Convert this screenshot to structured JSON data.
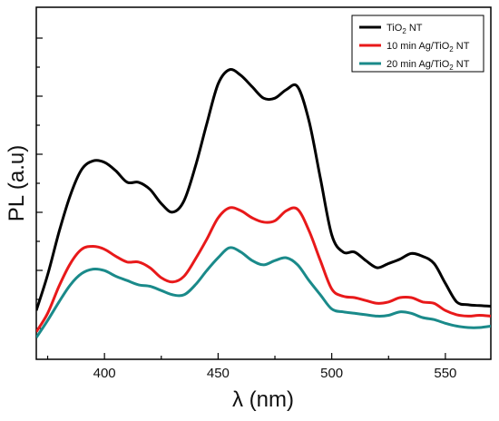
{
  "chart_data": {
    "type": "line",
    "title": "",
    "xlabel": "λ (nm)",
    "ylabel": "PL (a.u)",
    "xlim": [
      370,
      570
    ],
    "ylim": [
      0,
      1
    ],
    "xticks": [
      400,
      450,
      500,
      550
    ],
    "yticks_labeled": false,
    "grid": false,
    "legend_position": "top-right",
    "series": [
      {
        "name_main": "TiO",
        "name_sub": "2",
        "name_tail": " NT",
        "color": "#000000",
        "x": [
          370,
          375,
          380,
          385,
          390,
          395,
          400,
          405,
          410,
          415,
          420,
          425,
          430,
          435,
          440,
          445,
          450,
          455,
          460,
          465,
          470,
          475,
          480,
          485,
          490,
          495,
          500,
          505,
          510,
          515,
          520,
          525,
          530,
          535,
          540,
          545,
          550,
          555,
          560,
          565,
          570
        ],
        "y": [
          0.095,
          0.22,
          0.37,
          0.5,
          0.59,
          0.62,
          0.615,
          0.585,
          0.545,
          0.545,
          0.52,
          0.47,
          0.44,
          0.48,
          0.6,
          0.75,
          0.89,
          0.94,
          0.92,
          0.88,
          0.84,
          0.84,
          0.87,
          0.88,
          0.76,
          0.56,
          0.36,
          0.3,
          0.3,
          0.27,
          0.245,
          0.26,
          0.275,
          0.295,
          0.285,
          0.26,
          0.19,
          0.125,
          0.115,
          0.112,
          0.11
        ]
      },
      {
        "name_main": "10 min Ag/TiO",
        "name_sub": "2",
        "name_tail": " NT",
        "color": "#e8191a",
        "x": [
          370,
          375,
          380,
          385,
          390,
          395,
          400,
          405,
          410,
          415,
          420,
          425,
          430,
          435,
          440,
          445,
          450,
          455,
          460,
          465,
          470,
          475,
          480,
          485,
          490,
          495,
          500,
          505,
          510,
          515,
          520,
          525,
          530,
          535,
          540,
          545,
          550,
          555,
          560,
          565,
          570
        ],
        "y": [
          0.02,
          0.085,
          0.18,
          0.26,
          0.31,
          0.32,
          0.31,
          0.285,
          0.265,
          0.265,
          0.245,
          0.21,
          0.195,
          0.215,
          0.275,
          0.345,
          0.42,
          0.455,
          0.445,
          0.42,
          0.405,
          0.41,
          0.445,
          0.45,
          0.375,
          0.27,
          0.17,
          0.145,
          0.14,
          0.13,
          0.12,
          0.125,
          0.14,
          0.14,
          0.125,
          0.12,
          0.095,
          0.08,
          0.075,
          0.078,
          0.075
        ]
      },
      {
        "name_main": "20 min Ag/TiO",
        "name_sub": "2",
        "name_tail": " NT",
        "color": "#1a8a8a",
        "x": [
          370,
          375,
          380,
          385,
          390,
          395,
          400,
          405,
          410,
          415,
          420,
          425,
          430,
          435,
          440,
          445,
          450,
          455,
          460,
          465,
          470,
          475,
          480,
          485,
          490,
          495,
          500,
          505,
          510,
          515,
          520,
          525,
          530,
          535,
          540,
          545,
          550,
          555,
          560,
          565,
          570
        ],
        "y": [
          0.0,
          0.06,
          0.125,
          0.185,
          0.225,
          0.24,
          0.235,
          0.215,
          0.2,
          0.185,
          0.18,
          0.165,
          0.15,
          0.15,
          0.185,
          0.235,
          0.28,
          0.315,
          0.3,
          0.27,
          0.255,
          0.27,
          0.28,
          0.255,
          0.2,
          0.15,
          0.1,
          0.09,
          0.085,
          0.08,
          0.075,
          0.078,
          0.09,
          0.085,
          0.07,
          0.063,
          0.05,
          0.04,
          0.035,
          0.035,
          0.04
        ]
      }
    ]
  }
}
